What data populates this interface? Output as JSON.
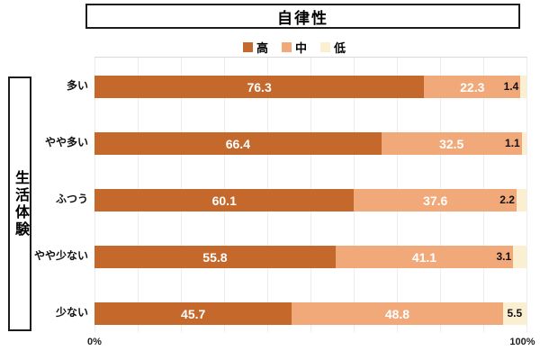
{
  "title": "自律性",
  "category_axis_label": "生活体験",
  "x_axis": {
    "start_label": "0%",
    "end_label": "100%"
  },
  "legend": {
    "items": [
      {
        "label": "高",
        "color": "#C4682C"
      },
      {
        "label": "中",
        "color": "#F1A97A"
      },
      {
        "label": "低",
        "color": "#FAEFD0"
      }
    ]
  },
  "chart_data": {
    "type": "bar",
    "orientation": "horizontal",
    "stacked": true,
    "unit": "percent",
    "title": "自律性",
    "categories": [
      "多い",
      "やや多い",
      "ふつう",
      "やや少ない",
      "少ない"
    ],
    "series": [
      {
        "name": "高",
        "color": "#C4682C",
        "text_color": "#ffffff",
        "values": [
          76.3,
          66.4,
          60.1,
          55.8,
          45.7
        ]
      },
      {
        "name": "中",
        "color": "#F1A97A",
        "text_color": "#ffffff",
        "values": [
          22.3,
          32.5,
          37.6,
          41.1,
          48.8
        ]
      },
      {
        "name": "低",
        "color": "#FAEFD0",
        "text_color": "#111111",
        "values": [
          1.4,
          1.1,
          2.2,
          3.1,
          5.5
        ]
      }
    ],
    "xlim": [
      0,
      100
    ],
    "x_tick_labels": [
      "0%",
      "100%"
    ],
    "grid": "vertical gridlines every 10%",
    "legend_position": "top-center",
    "category_axis_label": "生活体験"
  }
}
